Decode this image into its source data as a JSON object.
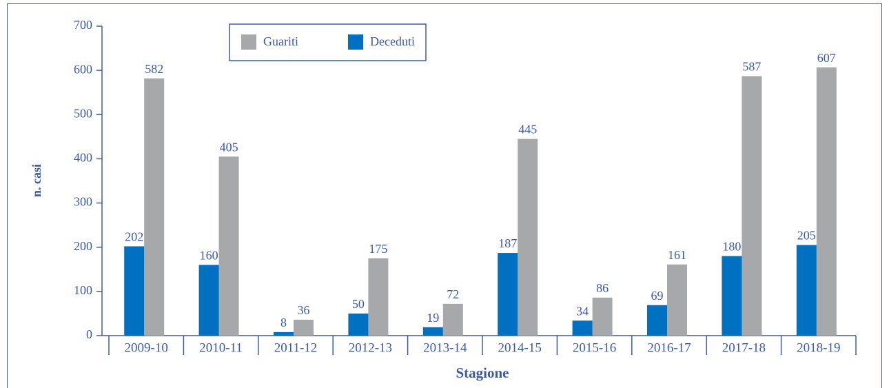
{
  "chart_data": {
    "type": "bar",
    "x_label": "Stagione",
    "y_label": "n. casi",
    "categories": [
      "2009-10",
      "2010-11",
      "2011-12",
      "2012-13",
      "2013-14",
      "2014-15",
      "2015-16",
      "2016-17",
      "2017-18",
      "2018-19"
    ],
    "series": [
      {
        "name": "Guariti",
        "color": "#a6a8a9",
        "values": [
          582,
          405,
          36,
          175,
          72,
          445,
          86,
          161,
          587,
          607
        ]
      },
      {
        "name": "Deceduti",
        "color": "#0070c0",
        "values": [
          202,
          160,
          8,
          50,
          19,
          187,
          34,
          69,
          180,
          205
        ]
      }
    ],
    "ylim": [
      0,
      700
    ],
    "yticks": [
      0,
      100,
      200,
      300,
      400,
      500,
      600,
      700
    ],
    "legend": "top"
  }
}
